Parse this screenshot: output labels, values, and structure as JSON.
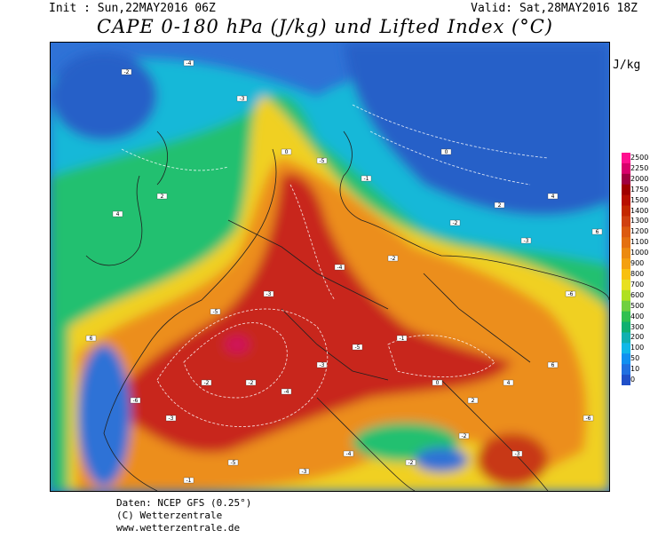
{
  "header": {
    "init": "Init : Sun,22MAY2016 06Z",
    "valid": "Valid: Sat,28MAY2016 18Z",
    "title": "CAPE 0-180 hPa (J/kg) und Lifted Index (°C)"
  },
  "legend": {
    "unit": "J/kg",
    "levels": [
      "2500",
      "2250",
      "2000",
      "1750",
      "1500",
      "1400",
      "1300",
      "1200",
      "1100",
      "1000",
      "900",
      "800",
      "700",
      "600",
      "500",
      "400",
      "300",
      "200",
      "100",
      "50",
      "10",
      "0"
    ],
    "colors": [
      "#ff1090",
      "#d8006c",
      "#a00040",
      "#a00000",
      "#b81000",
      "#c42800",
      "#d04010",
      "#dc5a10",
      "#e47010",
      "#ec8a10",
      "#f4a010",
      "#f8c010",
      "#e8e020",
      "#b0e020",
      "#70d040",
      "#30c050",
      "#10b070",
      "#10b0b0",
      "#10b8e8",
      "#1090f0",
      "#2070e0",
      "#2050c8"
    ],
    "colors_note": "from top (high CAPE) to bottom (low CAPE)"
  },
  "footer": {
    "line1": "Daten: NCEP GFS (0.25°)",
    "line2": "(C) Wetterzentrale",
    "line3": "www.wetterzentrale.de"
  },
  "map": {
    "region": "Europe",
    "lifted_index_labels": [
      {
        "t": "-2"
      },
      {
        "t": "-4"
      },
      {
        "t": "-3"
      },
      {
        "t": "-5"
      },
      {
        "t": "-1"
      },
      {
        "t": "0"
      },
      {
        "t": "2"
      },
      {
        "t": "4"
      },
      {
        "t": "6"
      },
      {
        "t": "-6"
      },
      {
        "t": "-3"
      },
      {
        "t": "-2"
      }
    ]
  }
}
